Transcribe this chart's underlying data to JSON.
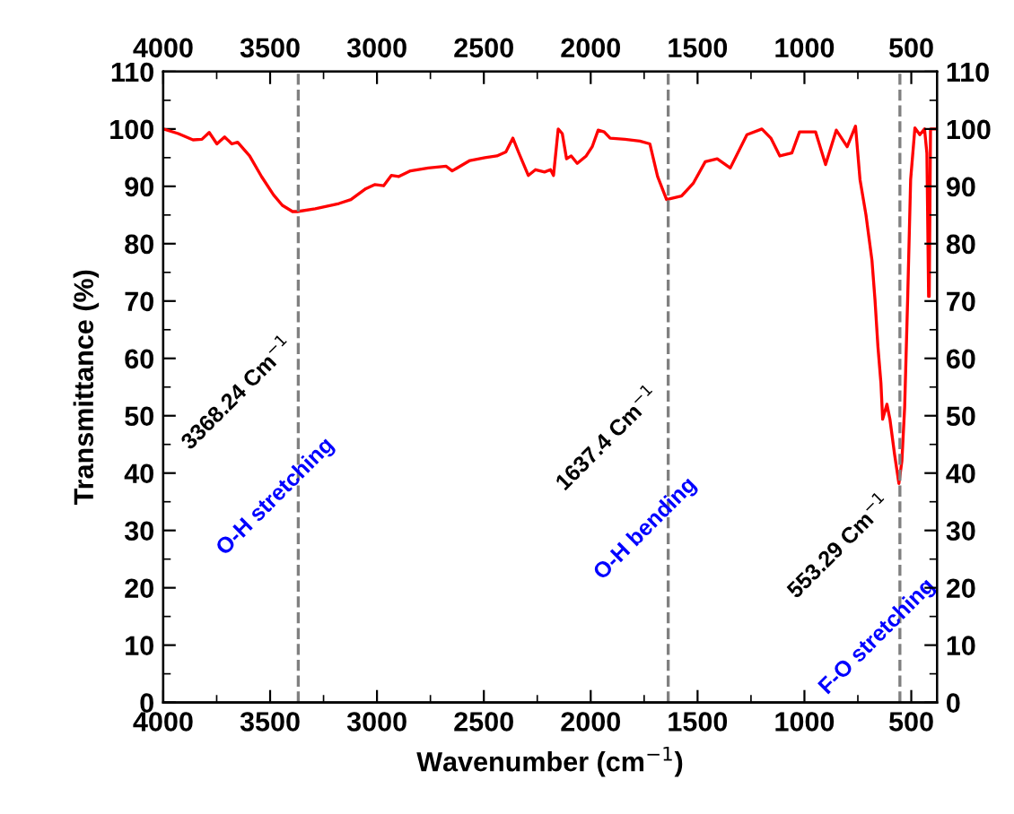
{
  "chart_data": {
    "type": "line",
    "xlabel": "Wavenumber (cm$^{−1}$)",
    "ylabel": "Transmittance (%)",
    "xlim": [
      4000,
      380
    ],
    "xticks": [
      4000,
      3500,
      3000,
      2500,
      2000,
      1500,
      1000,
      500
    ],
    "x2lim": [
      4000,
      380
    ],
    "x2ticks": [
      4000,
      3500,
      3000,
      2500,
      2000,
      1500,
      1000,
      500
    ],
    "ylim": [
      0,
      110
    ],
    "yticks": [
      0,
      10,
      20,
      30,
      40,
      50,
      60,
      70,
      80,
      90,
      100,
      110
    ],
    "y2lim": [
      0,
      110
    ],
    "y2ticks": [
      0,
      10,
      20,
      30,
      40,
      50,
      60,
      70,
      80,
      90,
      100,
      110
    ],
    "grid": false,
    "legend": false,
    "marker": "none",
    "line_style": "solid",
    "series": [
      {
        "color": "#ff0000",
        "x": [
          4000,
          3930,
          3861,
          3819,
          3785,
          3749,
          3713,
          3679,
          3652,
          3596,
          3540,
          3484,
          3443,
          3395,
          3373,
          3289,
          3178,
          3122,
          3052,
          3011,
          2969,
          2933,
          2899,
          2843,
          2760,
          2676,
          2648,
          2565,
          2495,
          2439,
          2397,
          2364,
          2336,
          2292,
          2258,
          2216,
          2188,
          2174,
          2152,
          2133,
          2113,
          2091,
          2063,
          2021,
          1993,
          1965,
          1937,
          1909,
          1840,
          1770,
          1723,
          1687,
          1645,
          1575,
          1519,
          1464,
          1408,
          1347,
          1269,
          1199,
          1157,
          1115,
          1059,
          1023,
          948,
          901,
          851,
          800,
          761,
          740,
          712,
          684,
          670,
          656,
          642,
          634,
          614,
          600,
          578,
          558,
          544,
          531,
          517,
          503,
          483,
          460,
          438,
          427,
          419,
          416,
          410,
          382
        ],
        "values": [
          100,
          99.2,
          98.1,
          98.2,
          99.4,
          97.4,
          98.6,
          97.4,
          97.7,
          95.3,
          91.7,
          88.5,
          86.7,
          85.6,
          85.6,
          86.1,
          87.0,
          87.7,
          89.6,
          90.3,
          90.1,
          91.9,
          91.7,
          92.7,
          93.2,
          93.5,
          92.7,
          94.5,
          95.0,
          95.3,
          96.0,
          98.4,
          95.8,
          91.9,
          92.9,
          92.5,
          92.9,
          91.9,
          100,
          99.2,
          94.8,
          95.3,
          94.0,
          95.3,
          96.9,
          99.8,
          99.5,
          98.4,
          98.2,
          97.9,
          97.4,
          91.7,
          87.7,
          88.3,
          90.6,
          94.3,
          94.8,
          93.2,
          99.0,
          100,
          98.4,
          95.3,
          95.8,
          99.5,
          99.5,
          93.8,
          99.8,
          96.9,
          100.5,
          91.2,
          85.0,
          77.1,
          70.3,
          62.0,
          55.7,
          49.4,
          52.0,
          49.4,
          43.2,
          38.2,
          42.1,
          51.5,
          70.3,
          91.2,
          100.2,
          99.0,
          100,
          95.8,
          70.8,
          70.8,
          100,
          100
        ]
      }
    ],
    "ref_lines": [
      {
        "axis": "x",
        "value": 3368.24,
        "color": "#808080",
        "line_style": "dashed"
      },
      {
        "axis": "x",
        "value": 1637.4,
        "color": "#808080",
        "line_style": "dashed"
      },
      {
        "axis": "x",
        "value": 553.29,
        "color": "#808080",
        "line_style": "dashed"
      }
    ],
    "annotations": [
      {
        "text": "3368.24 Cm$^{−1}$",
        "x": 3368.24,
        "y": 53.7
      },
      {
        "text": "O-H stretching",
        "x": 3368.24,
        "y": 35.8
      },
      {
        "text": "1637.4 Cm$^{−1}$",
        "x": 1637.4,
        "y": 45.8
      },
      {
        "text": "O-H bending",
        "x": 1637.4,
        "y": 30.2
      },
      {
        "text": "553.29 Cm$^{−1}$",
        "x": 553.29,
        "y": 27.0
      },
      {
        "text": "F-O stretching",
        "x": 553.29,
        "y": 11.4
      }
    ]
  }
}
